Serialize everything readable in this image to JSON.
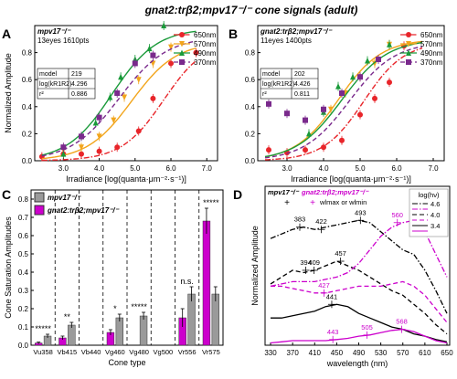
{
  "figure": {
    "title": "gnat2:trβ2;mpv17⁻/⁻ cone signals (adult)",
    "colors": {
      "black": "#000000",
      "magenta": "#cc00cc",
      "red": "#e8252a",
      "orange": "#f2a51c",
      "green": "#1a9a3a",
      "purple": "#7a2a8c",
      "gray": "#9a9a9a"
    }
  },
  "chart_data": [
    {
      "panel": "A",
      "type": "scatter",
      "title": "",
      "xlabel": "Irradiance [log(quanta·μm⁻²·s⁻¹)]",
      "ylabel": "Normalized Amplitude",
      "xlim": [
        2.2,
        7.3
      ],
      "ylim": [
        0,
        1
      ],
      "xticks": [
        3.0,
        4.0,
        5.0,
        6.0,
        7.0
      ],
      "yticks": [
        0.0,
        0.2,
        0.4,
        0.6,
        0.8
      ],
      "legend": {
        "placement": "top-right",
        "entries": [
          "650nm",
          "570nm",
          "490nm",
          "370nm"
        ]
      },
      "info": {
        "genotype": "mpv17⁻/⁻",
        "counts": "13eyes 1610pts",
        "rows": [
          [
            "model",
            "219"
          ],
          [
            "log(kR1R2)",
            "4.296"
          ],
          [
            "r²",
            "0.886"
          ]
        ]
      },
      "series": [
        {
          "name": "650nm",
          "color": "#e8252a",
          "marker": "circle",
          "dash": "dashdot",
          "x": [
            2.4,
            3.0,
            3.5,
            4.0,
            4.5,
            5.1,
            5.5,
            6.0,
            6.7
          ],
          "y": [
            0.03,
            0.05,
            0.05,
            0.07,
            0.1,
            0.22,
            0.46,
            0.72,
            0.8
          ],
          "curve": {
            "mid": 5.8,
            "slope": 1.7,
            "amp": 0.9
          }
        },
        {
          "name": "570nm",
          "color": "#f2a51c",
          "marker": "triangle-down",
          "dash": "solid",
          "x": [
            3.0,
            3.5,
            4.0,
            4.4,
            4.7,
            5.1,
            5.5,
            6.0
          ],
          "y": [
            0.08,
            0.1,
            0.18,
            0.3,
            0.47,
            0.6,
            0.72,
            0.84
          ],
          "curve": {
            "mid": 4.9,
            "slope": 1.6,
            "amp": 0.88
          }
        },
        {
          "name": "490nm",
          "color": "#1a9a3a",
          "marker": "triangle-up",
          "dash": "solid",
          "x": [
            3.0,
            3.5,
            3.9,
            4.3,
            4.6,
            5.0,
            5.4,
            5.8
          ],
          "y": [
            0.05,
            0.18,
            0.28,
            0.47,
            0.62,
            0.75,
            0.83,
            1.0
          ],
          "curve": {
            "mid": 4.35,
            "slope": 1.6,
            "amp": 0.98
          }
        },
        {
          "name": "370nm",
          "color": "#7a2a8c",
          "marker": "square",
          "dash": "dash",
          "x": [
            3.0,
            3.5,
            4.0,
            4.5,
            5.0,
            5.5
          ],
          "y": [
            0.1,
            0.18,
            0.32,
            0.5,
            0.72,
            0.78
          ],
          "curve": {
            "mid": 4.55,
            "slope": 1.5,
            "amp": 0.92
          }
        }
      ]
    },
    {
      "panel": "B",
      "type": "scatter",
      "title": "",
      "xlabel": "Irradiance [log(quanta·μm⁻²·s⁻¹)]",
      "ylabel": "",
      "xlim": [
        2.2,
        7.3
      ],
      "ylim": [
        0,
        1
      ],
      "xticks": [
        3.0,
        4.0,
        5.0,
        6.0,
        7.0
      ],
      "yticks": [
        0.0,
        0.2,
        0.4,
        0.6,
        0.8
      ],
      "legend": {
        "placement": "top-right",
        "entries": [
          "650nm",
          "570nm",
          "490nm",
          "370nm"
        ]
      },
      "info": {
        "genotype": "gnat2:trβ2;mpv17⁻/⁻",
        "counts": "11eyes 1400pts",
        "rows": [
          [
            "model",
            "202"
          ],
          [
            "log(kR1R2)",
            "4.426"
          ],
          [
            "r²",
            "0.811"
          ]
        ]
      },
      "series": [
        {
          "name": "650nm",
          "color": "#e8252a",
          "marker": "circle",
          "dash": "dashdot",
          "x": [
            2.5,
            3.0,
            3.5,
            4.0,
            4.5,
            5.0,
            5.4,
            5.8,
            6.2
          ],
          "y": [
            0.08,
            0.06,
            0.08,
            0.1,
            0.15,
            0.34,
            0.46,
            0.58,
            0.85
          ],
          "curve": {
            "mid": 5.1,
            "slope": 1.8,
            "amp": 0.88
          }
        },
        {
          "name": "570nm",
          "color": "#f2a51c",
          "marker": "triangle-down",
          "dash": "solid",
          "x": [
            4.2,
            4.6,
            5.0,
            5.4,
            5.8
          ],
          "y": [
            0.38,
            0.5,
            0.62,
            0.72,
            0.86
          ],
          "curve": {
            "mid": 4.4,
            "slope": 1.7,
            "amp": 0.9
          }
        },
        {
          "name": "490nm",
          "color": "#1a9a3a",
          "marker": "triangle-up",
          "dash": "solid",
          "x": [
            3.6,
            4.0,
            4.4,
            4.8,
            5.2,
            5.8
          ],
          "y": [
            0.2,
            0.36,
            0.55,
            0.62,
            0.74,
            0.86
          ],
          "curve": {
            "mid": 4.5,
            "slope": 1.6,
            "amp": 0.9
          }
        },
        {
          "name": "370nm",
          "color": "#7a2a8c",
          "marker": "square",
          "dash": "dash",
          "x": [
            2.5,
            3.0,
            3.5,
            4.0,
            4.5,
            5.0,
            5.5
          ],
          "y": [
            0.42,
            0.35,
            0.3,
            0.38,
            0.5,
            0.62,
            0.75
          ],
          "curve": {
            "mid": 4.7,
            "slope": 1.6,
            "amp": 0.88
          }
        }
      ]
    },
    {
      "panel": "C",
      "type": "bar",
      "title": "",
      "xlabel": "Cone type",
      "ylabel": "Cone Saturation Amplitudes",
      "ylim": [
        0,
        0.85
      ],
      "yticks": [
        0.0,
        0.1,
        0.2,
        0.3,
        0.4,
        0.5,
        0.6,
        0.7,
        0.8
      ],
      "legend": {
        "placement": "top-right",
        "entries": [
          "mpv17⁻/⁻",
          "gnat2:trβ2;mpv17⁻/⁻"
        ]
      },
      "categories": [
        "Vu358",
        "Vb415",
        "Vb440",
        "Vg460",
        "Vg480",
        "Vg500",
        "Vr556",
        "Vr575"
      ],
      "series": [
        {
          "name": "gnat2:trβ2;mpv17⁻/⁻",
          "color": "#cc00cc",
          "values": [
            0.012,
            0.04,
            0,
            0.07,
            0,
            0,
            0.15,
            0.68
          ],
          "errors": [
            0.005,
            0.01,
            0,
            0.015,
            0,
            0,
            0.05,
            0.07
          ]
        },
        {
          "name": "mpv17⁻/⁻",
          "color": "#9a9a9a",
          "values": [
            0.05,
            0.11,
            0,
            0.15,
            0.16,
            0,
            0.28,
            0.28
          ],
          "errors": [
            0.01,
            0.015,
            0,
            0.02,
            0.02,
            0,
            0.04,
            0.04
          ]
        }
      ],
      "significance": [
        "*****",
        "**",
        "",
        "*",
        "*****",
        "",
        "n.s.",
        "*****"
      ]
    },
    {
      "panel": "D",
      "type": "line",
      "title": "",
      "xlabel": "wavelength (nm)",
      "ylabel": "Normalized Amplitude",
      "xlim": [
        320,
        655
      ],
      "ylim": [
        0,
        0.7
      ],
      "xticks": [
        330,
        370,
        410,
        450,
        490,
        530,
        570,
        610,
        650
      ],
      "legend": {
        "placement": "top-right",
        "header": "log(hν)",
        "entries": [
          "4.6",
          "4.0",
          "3.4"
        ]
      },
      "legend_top": {
        "black_label": "mpv17⁻/⁻",
        "magenta_label": "gnat2:trβ2;mpv17⁻/⁻",
        "marker_note": "wlmax or wlmin"
      },
      "x": [
        330,
        350,
        370,
        390,
        410,
        430,
        450,
        470,
        490,
        510,
        530,
        550,
        570,
        590,
        610,
        630,
        650
      ],
      "series": [
        {
          "name": "4.6",
          "group": "mpv17⁻/⁻",
          "color": "#000000",
          "dash": "dashdot",
          "y": [
            0.47,
            0.49,
            0.51,
            0.52,
            0.51,
            0.52,
            0.53,
            0.54,
            0.55,
            0.54,
            0.5,
            0.46,
            0.42,
            0.4,
            0.33,
            0.24,
            0.14
          ]
        },
        {
          "name": "4.0",
          "group": "mpv17⁻/⁻",
          "color": "#000000",
          "dash": "dash",
          "y": [
            0.27,
            0.3,
            0.33,
            0.32,
            0.33,
            0.35,
            0.37,
            0.35,
            0.33,
            0.3,
            0.27,
            0.24,
            0.22,
            0.18,
            0.14,
            0.09,
            0.05
          ]
        },
        {
          "name": "3.4",
          "group": "mpv17⁻/⁻",
          "color": "#000000",
          "dash": "solid",
          "y": [
            0.12,
            0.12,
            0.13,
            0.14,
            0.15,
            0.17,
            0.18,
            0.17,
            0.14,
            0.12,
            0.1,
            0.08,
            0.07,
            0.05,
            0.04,
            0.025,
            0.015
          ]
        },
        {
          "name": "4.6",
          "group": "gnat2:trβ2;mpv17⁻/⁻",
          "color": "#cc00cc",
          "dash": "dashdot",
          "y": [
            0.26,
            0.27,
            0.28,
            0.28,
            0.28,
            0.29,
            0.3,
            0.32,
            0.36,
            0.42,
            0.48,
            0.52,
            0.54,
            0.55,
            0.5,
            0.4,
            0.3
          ]
        },
        {
          "name": "4.0",
          "group": "gnat2:trβ2;mpv17⁻/⁻",
          "color": "#cc00cc",
          "dash": "dash",
          "y": [
            0.26,
            0.26,
            0.25,
            0.24,
            0.23,
            0.23,
            0.24,
            0.25,
            0.26,
            0.26,
            0.26,
            0.27,
            0.28,
            0.26,
            0.22,
            0.16,
            0.1
          ]
        },
        {
          "name": "3.4",
          "group": "gnat2:trβ2;mpv17⁻/⁻",
          "color": "#cc00cc",
          "dash": "solid",
          "y": [
            0.01,
            0.015,
            0.02,
            0.02,
            0.02,
            0.02,
            0.025,
            0.03,
            0.04,
            0.045,
            0.055,
            0.065,
            0.07,
            0.06,
            0.04,
            0.02,
            0.01
          ]
        }
      ],
      "annotations": [
        {
          "x": 383,
          "y": 0.52,
          "label": "383",
          "color": "#000000"
        },
        {
          "x": 422,
          "y": 0.51,
          "label": "422",
          "color": "#000000"
        },
        {
          "x": 493,
          "y": 0.55,
          "label": "493",
          "color": "#000000"
        },
        {
          "x": 394,
          "y": 0.33,
          "label": "394",
          "color": "#000000"
        },
        {
          "x": 409,
          "y": 0.33,
          "label": "409",
          "color": "#000000"
        },
        {
          "x": 457,
          "y": 0.37,
          "label": "457",
          "color": "#000000"
        },
        {
          "x": 441,
          "y": 0.18,
          "label": "441",
          "color": "#000000"
        },
        {
          "x": 560,
          "y": 0.54,
          "label": "560",
          "color": "#cc00cc"
        },
        {
          "x": 427,
          "y": 0.23,
          "label": "427",
          "color": "#cc00cc"
        },
        {
          "x": 443,
          "y": 0.025,
          "label": "443",
          "color": "#cc00cc"
        },
        {
          "x": 505,
          "y": 0.045,
          "label": "505",
          "color": "#cc00cc"
        },
        {
          "x": 568,
          "y": 0.07,
          "label": "568",
          "color": "#cc00cc"
        }
      ]
    }
  ]
}
